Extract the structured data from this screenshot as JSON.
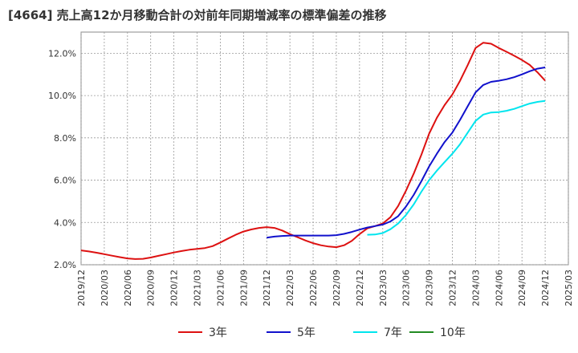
{
  "title": "[4664]  売上高12か月移動合計の対前年同期増減率の標準偏差の推移",
  "chart_data": {
    "type": "line",
    "ylim": [
      2.0,
      13.0
    ],
    "yticks": [
      2.0,
      4.0,
      6.0,
      8.0,
      10.0,
      12.0
    ],
    "ytick_labels": [
      "2.0%",
      "4.0%",
      "6.0%",
      "8.0%",
      "10.0%",
      "12.0%"
    ],
    "xticks": [
      "2019/12",
      "2020/03",
      "2020/06",
      "2020/09",
      "2020/12",
      "2021/03",
      "2021/06",
      "2021/09",
      "2021/12",
      "2022/03",
      "2022/06",
      "2022/09",
      "2022/12",
      "2023/03",
      "2023/06",
      "2023/09",
      "2023/12",
      "2024/03",
      "2024/06",
      "2024/09",
      "2024/12",
      "2025/03"
    ],
    "grid": true,
    "legend_position": "bottom",
    "series": [
      {
        "name": "3年",
        "color": "#dd1111",
        "x": [
          "2019/12",
          "2020/01",
          "2020/02",
          "2020/03",
          "2020/04",
          "2020/05",
          "2020/06",
          "2020/07",
          "2020/08",
          "2020/09",
          "2020/10",
          "2020/11",
          "2020/12",
          "2021/01",
          "2021/02",
          "2021/03",
          "2021/04",
          "2021/05",
          "2021/06",
          "2021/07",
          "2021/08",
          "2021/09",
          "2021/10",
          "2021/11",
          "2021/12",
          "2022/01",
          "2022/02",
          "2022/03",
          "2022/04",
          "2022/05",
          "2022/06",
          "2022/07",
          "2022/08",
          "2022/09",
          "2022/10",
          "2022/11",
          "2022/12",
          "2023/01",
          "2023/02",
          "2023/03",
          "2023/04",
          "2023/05",
          "2023/06",
          "2023/07",
          "2023/08",
          "2023/09",
          "2023/10",
          "2023/11",
          "2023/12",
          "2024/01",
          "2024/02",
          "2024/03",
          "2024/04",
          "2024/05",
          "2024/06",
          "2024/07",
          "2024/08",
          "2024/09",
          "2024/10",
          "2024/11",
          "2024/12"
        ],
        "values": [
          2.68,
          2.63,
          2.57,
          2.5,
          2.43,
          2.36,
          2.3,
          2.27,
          2.28,
          2.34,
          2.42,
          2.5,
          2.58,
          2.65,
          2.71,
          2.75,
          2.79,
          2.88,
          3.05,
          3.24,
          3.42,
          3.57,
          3.67,
          3.74,
          3.78,
          3.74,
          3.62,
          3.45,
          3.3,
          3.15,
          3.02,
          2.92,
          2.86,
          2.83,
          2.92,
          3.13,
          3.45,
          3.72,
          3.83,
          3.95,
          4.25,
          4.78,
          5.5,
          6.3,
          7.2,
          8.2,
          8.95,
          9.55,
          10.05,
          10.7,
          11.45,
          12.25,
          12.5,
          12.45,
          12.25,
          12.07,
          11.88,
          11.68,
          11.45,
          11.1,
          10.7
        ]
      },
      {
        "name": "5年",
        "color": "#1111cc",
        "x": [
          "2021/12",
          "2022/01",
          "2022/02",
          "2022/03",
          "2022/04",
          "2022/05",
          "2022/06",
          "2022/07",
          "2022/08",
          "2022/09",
          "2022/10",
          "2022/11",
          "2022/12",
          "2023/01",
          "2023/02",
          "2023/03",
          "2023/04",
          "2023/05",
          "2023/06",
          "2023/07",
          "2023/08",
          "2023/09",
          "2023/10",
          "2023/11",
          "2023/12",
          "2024/01",
          "2024/02",
          "2024/03",
          "2024/04",
          "2024/05",
          "2024/06",
          "2024/07",
          "2024/08",
          "2024/09",
          "2024/10",
          "2024/11",
          "2024/12"
        ],
        "values": [
          3.28,
          3.33,
          3.36,
          3.38,
          3.38,
          3.38,
          3.38,
          3.38,
          3.38,
          3.4,
          3.46,
          3.55,
          3.66,
          3.76,
          3.83,
          3.9,
          4.05,
          4.3,
          4.75,
          5.3,
          5.95,
          6.65,
          7.25,
          7.8,
          8.25,
          8.85,
          9.5,
          10.15,
          10.5,
          10.65,
          10.7,
          10.77,
          10.87,
          11.0,
          11.15,
          11.27,
          11.33
        ]
      },
      {
        "name": "7年",
        "color": "#00e5ee",
        "x": [
          "2023/01",
          "2023/02",
          "2023/03",
          "2023/04",
          "2023/05",
          "2023/06",
          "2023/07",
          "2023/08",
          "2023/09",
          "2023/10",
          "2023/11",
          "2023/12",
          "2024/01",
          "2024/02",
          "2024/03",
          "2024/04",
          "2024/05",
          "2024/06",
          "2024/07",
          "2024/08",
          "2024/09",
          "2024/10",
          "2024/11",
          "2024/12"
        ],
        "values": [
          3.42,
          3.43,
          3.5,
          3.68,
          3.95,
          4.35,
          4.85,
          5.45,
          6.0,
          6.45,
          6.85,
          7.25,
          7.7,
          8.25,
          8.8,
          9.1,
          9.2,
          9.22,
          9.28,
          9.37,
          9.5,
          9.62,
          9.7,
          9.75
        ]
      },
      {
        "name": "10年",
        "color": "#228b22",
        "x": [],
        "values": []
      }
    ]
  }
}
